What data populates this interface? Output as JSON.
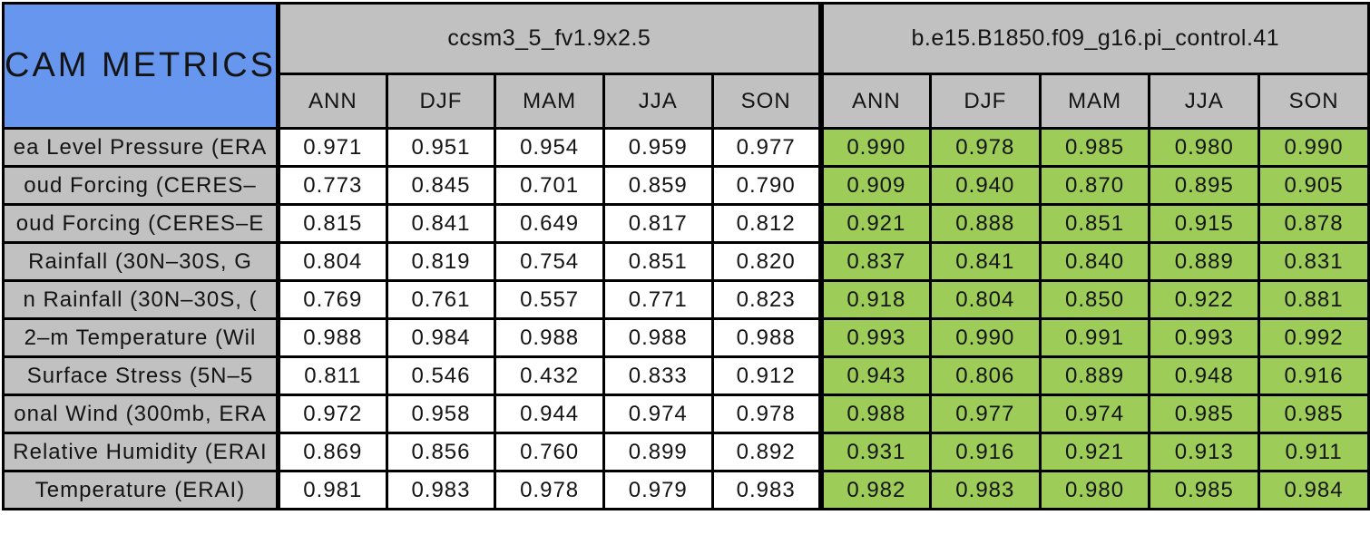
{
  "colors": {
    "title_bg": "#6696ee",
    "header_bg": "#c1c1c1",
    "model1_cell_bg": "#ffffff",
    "model2_cell_bg": "#9dcc58",
    "border": "#000000",
    "text": "#141414"
  },
  "chart_data": {
    "type": "table",
    "title": "CAM METRICS",
    "column_groups": [
      {
        "name": "ccsm3_5_fv1.9x2.5",
        "columns": [
          "ANN",
          "DJF",
          "MAM",
          "JJA",
          "SON"
        ]
      },
      {
        "name": "b.e15.B1850.f09_g16.pi_control.41",
        "columns": [
          "ANN",
          "DJF",
          "MAM",
          "JJA",
          "SON"
        ]
      }
    ],
    "rows": [
      {
        "label": "ea Level Pressure (ERA",
        "m1": [
          "0.971",
          "0.951",
          "0.954",
          "0.959",
          "0.977"
        ],
        "m2": [
          "0.990",
          "0.978",
          "0.985",
          "0.980",
          "0.990"
        ]
      },
      {
        "label": "oud Forcing (CERES–",
        "m1": [
          "0.773",
          "0.845",
          "0.701",
          "0.859",
          "0.790"
        ],
        "m2": [
          "0.909",
          "0.940",
          "0.870",
          "0.895",
          "0.905"
        ]
      },
      {
        "label": "oud Forcing (CERES–E",
        "m1": [
          "0.815",
          "0.841",
          "0.649",
          "0.817",
          "0.812"
        ],
        "m2": [
          "0.921",
          "0.888",
          "0.851",
          "0.915",
          "0.878"
        ]
      },
      {
        "label": "Rainfall (30N–30S, G",
        "m1": [
          "0.804",
          "0.819",
          "0.754",
          "0.851",
          "0.820"
        ],
        "m2": [
          "0.837",
          "0.841",
          "0.840",
          "0.889",
          "0.831"
        ]
      },
      {
        "label": "n Rainfall (30N–30S, (",
        "m1": [
          "0.769",
          "0.761",
          "0.557",
          "0.771",
          "0.823"
        ],
        "m2": [
          "0.918",
          "0.804",
          "0.850",
          "0.922",
          "0.881"
        ]
      },
      {
        "label": "2–m Temperature (Wil",
        "m1": [
          "0.988",
          "0.984",
          "0.988",
          "0.988",
          "0.988"
        ],
        "m2": [
          "0.993",
          "0.990",
          "0.991",
          "0.993",
          "0.992"
        ]
      },
      {
        "label": "Surface Stress (5N–5",
        "m1": [
          "0.811",
          "0.546",
          "0.432",
          "0.833",
          "0.912"
        ],
        "m2": [
          "0.943",
          "0.806",
          "0.889",
          "0.948",
          "0.916"
        ]
      },
      {
        "label": "onal Wind (300mb, ERA",
        "m1": [
          "0.972",
          "0.958",
          "0.944",
          "0.974",
          "0.978"
        ],
        "m2": [
          "0.988",
          "0.977",
          "0.974",
          "0.985",
          "0.985"
        ]
      },
      {
        "label": "Relative Humidity (ERAI",
        "m1": [
          "0.869",
          "0.856",
          "0.760",
          "0.899",
          "0.892"
        ],
        "m2": [
          "0.931",
          "0.916",
          "0.921",
          "0.913",
          "0.911"
        ]
      },
      {
        "label": "Temperature (ERAI)",
        "m1": [
          "0.981",
          "0.983",
          "0.978",
          "0.979",
          "0.983"
        ],
        "m2": [
          "0.982",
          "0.983",
          "0.980",
          "0.985",
          "0.984"
        ]
      }
    ]
  }
}
